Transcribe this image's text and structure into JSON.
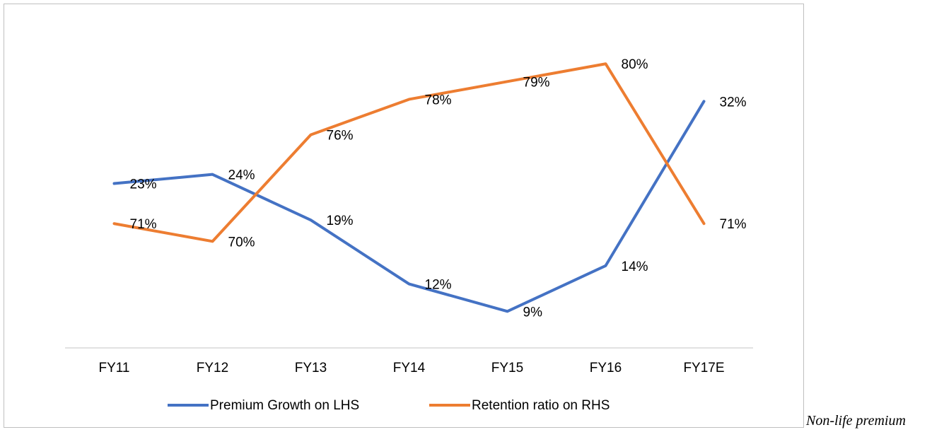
{
  "chart_data": {
    "type": "line",
    "categories": [
      "FY11",
      "FY12",
      "FY13",
      "FY14",
      "FY15",
      "FY16",
      "FY17E"
    ],
    "series": [
      {
        "name": "Premium Growth on LHS",
        "color": "#4472c4",
        "values": [
          23,
          24,
          19,
          12,
          9,
          14,
          32
        ],
        "value_labels": [
          "23%",
          "24%",
          "19%",
          "12%",
          "9%",
          "14%",
          "32%"
        ]
      },
      {
        "name": "Retention ratio on RHS",
        "color": "#ed7d31",
        "axis": "y2",
        "values": [
          71,
          70,
          76,
          78,
          79,
          80,
          71
        ],
        "value_labels": [
          "71%",
          "70%",
          "76%",
          "78%",
          "79%",
          "80%",
          "71%"
        ]
      }
    ],
    "ylim": [
      5,
      40
    ],
    "y2lim": [
      64,
      82
    ],
    "legend": "bottom"
  },
  "caption": "Non-life premium"
}
